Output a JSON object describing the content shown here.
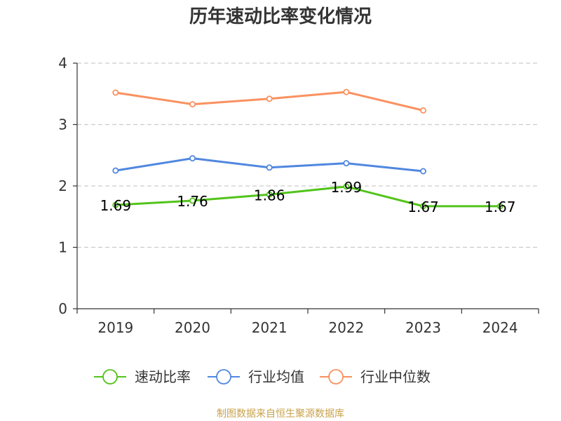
{
  "chart_data": {
    "type": "line",
    "title": "历年速动比率变化情况",
    "categories": [
      "2019",
      "2020",
      "2021",
      "2022",
      "2023",
      "2024"
    ],
    "ylim": [
      0,
      4
    ],
    "yticks": [
      0,
      1,
      2,
      3,
      4
    ],
    "grid": "dashed horizontal",
    "legend_position": "bottom",
    "series": [
      {
        "name": "速动比率",
        "color": "#52c41a",
        "values": [
          1.69,
          1.76,
          1.86,
          1.99,
          1.67,
          1.67
        ],
        "labels": [
          "1.69",
          "1.76",
          "1.86",
          "1.99",
          "1.67",
          "1.67"
        ]
      },
      {
        "name": "行业均值",
        "color": "#5087e0",
        "values": [
          2.25,
          2.45,
          2.3,
          2.37,
          2.24,
          null
        ]
      },
      {
        "name": "行业中位数",
        "color": "#fa9160",
        "values": [
          3.52,
          3.33,
          3.42,
          3.53,
          3.23,
          null
        ]
      }
    ]
  },
  "source_text": "制图数据来自恒生聚源数据库"
}
